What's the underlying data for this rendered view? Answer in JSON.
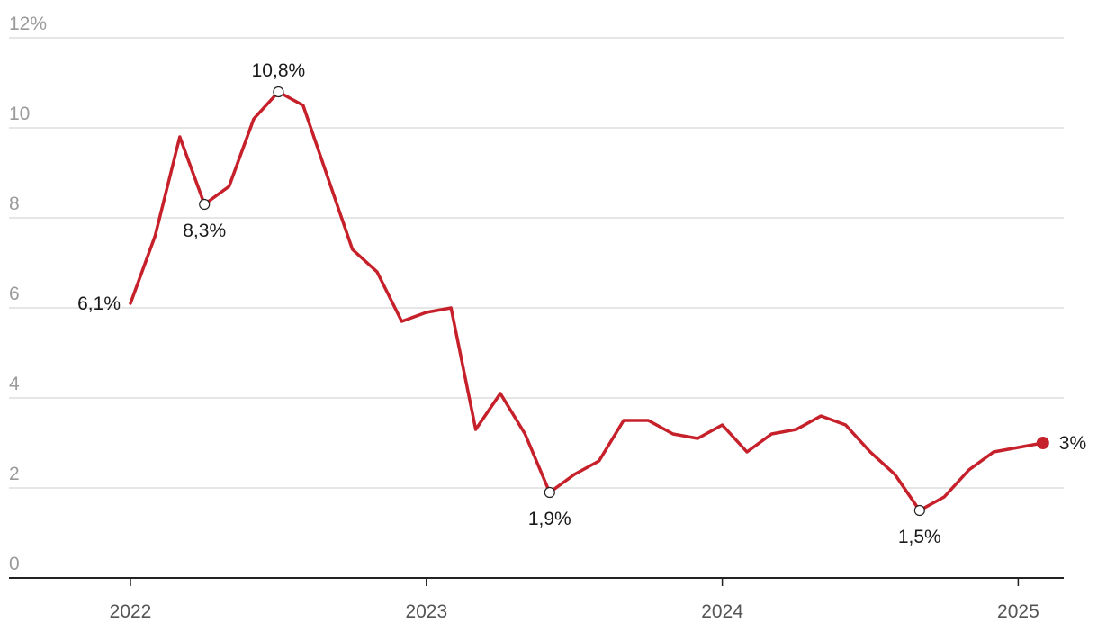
{
  "chart_data": {
    "type": "line",
    "y_unit": "%",
    "ylim": [
      0,
      12
    ],
    "y_ticks": [
      {
        "value": 0,
        "label": "0"
      },
      {
        "value": 2,
        "label": "2"
      },
      {
        "value": 4,
        "label": "4"
      },
      {
        "value": 6,
        "label": "6"
      },
      {
        "value": 8,
        "label": "8"
      },
      {
        "value": 10,
        "label": "10"
      },
      {
        "value": 12,
        "label": "12%"
      }
    ],
    "x_ticks": [
      "2022-01",
      "2023-01",
      "2024-01",
      "2025-01"
    ],
    "x_tick_labels": [
      "2022",
      "2023",
      "2024",
      "2025"
    ],
    "grid": true,
    "series": [
      {
        "color": "#c6202a",
        "x": [
          "2022-01",
          "2022-02",
          "2022-03",
          "2022-04",
          "2022-05",
          "2022-06",
          "2022-07",
          "2022-08",
          "2022-09",
          "2022-10",
          "2022-11",
          "2022-12",
          "2023-01",
          "2023-02",
          "2023-03",
          "2023-04",
          "2023-05",
          "2023-06",
          "2023-07",
          "2023-08",
          "2023-09",
          "2023-10",
          "2023-11",
          "2023-12",
          "2024-01",
          "2024-02",
          "2024-03",
          "2024-04",
          "2024-05",
          "2024-06",
          "2024-07",
          "2024-08",
          "2024-09",
          "2024-10",
          "2024-11",
          "2024-12",
          "2025-01",
          "2025-02"
        ],
        "values": [
          6.1,
          7.6,
          9.8,
          8.3,
          8.7,
          10.2,
          10.8,
          10.5,
          8.9,
          7.3,
          6.8,
          5.7,
          5.9,
          6.0,
          3.3,
          4.1,
          3.2,
          1.9,
          2.3,
          2.6,
          3.5,
          3.5,
          3.2,
          3.1,
          3.4,
          2.8,
          3.2,
          3.3,
          3.6,
          3.4,
          2.8,
          2.3,
          1.5,
          1.8,
          2.4,
          2.8,
          2.9,
          3.0
        ]
      }
    ],
    "annotations": [
      {
        "x": "2022-01",
        "value": 6.1,
        "label": "6,1%",
        "marker": "none",
        "position": "left"
      },
      {
        "x": "2022-04",
        "value": 8.3,
        "label": "8,3%",
        "marker": "open-circle",
        "position": "below"
      },
      {
        "x": "2022-07",
        "value": 10.8,
        "label": "10,8%",
        "marker": "open-circle",
        "position": "above"
      },
      {
        "x": "2023-06",
        "value": 1.9,
        "label": "1,9%",
        "marker": "open-circle",
        "position": "below"
      },
      {
        "x": "2024-09",
        "value": 1.5,
        "label": "1,5%",
        "marker": "open-circle",
        "position": "below"
      },
      {
        "x": "2025-02",
        "value": 3.0,
        "label": "3%",
        "marker": "filled-circle",
        "position": "right"
      }
    ]
  }
}
